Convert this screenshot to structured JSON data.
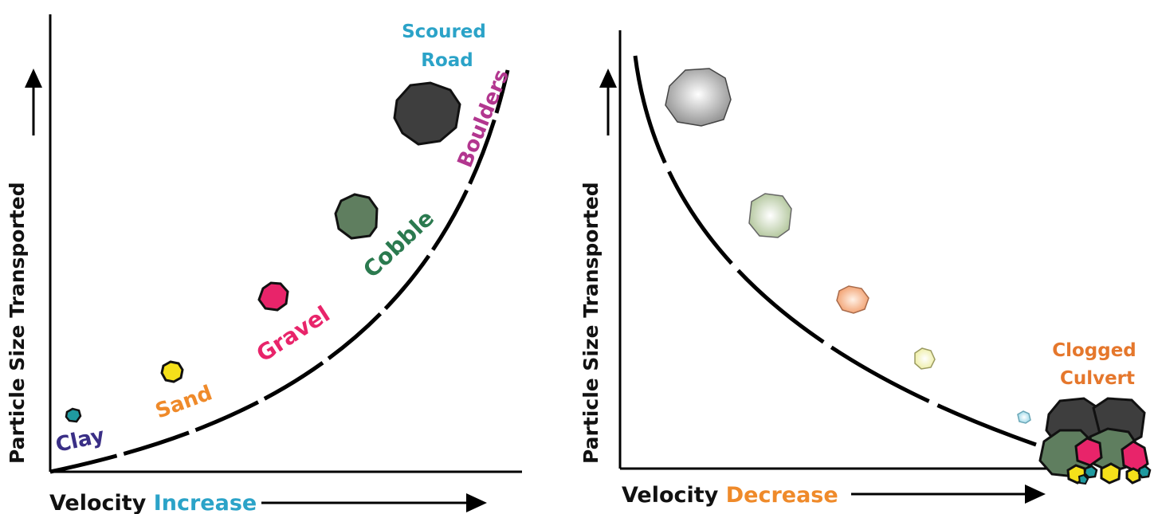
{
  "left_panel": {
    "y_axis_label": "Particle Size Transported",
    "x_axis_label_prefix": "Velocity",
    "x_axis_label_emphasis": "Increase",
    "annotation_line1": "Scoured",
    "annotation_line2": "Road",
    "particles": [
      {
        "label": "Clay",
        "color": "#1f9aa0",
        "label_color": "#3a2f86"
      },
      {
        "label": "Sand",
        "color": "#f5e01a",
        "label_color": "#ef8a2a"
      },
      {
        "label": "Gravel",
        "color": "#e8246a",
        "label_color": "#e8246a"
      },
      {
        "label": "Cobble",
        "color": "#5f7e5f",
        "label_color": "#2b7a4f"
      },
      {
        "label": "Boulders",
        "color": "#3e3e3e",
        "label_color": "#b2368f"
      }
    ]
  },
  "right_panel": {
    "y_axis_label": "Particle Size Transported",
    "x_axis_label_prefix": "Velocity",
    "x_axis_label_emphasis": "Decrease",
    "annotation_line1": "Clogged",
    "annotation_line2": "Culvert"
  },
  "colors": {
    "increase": "#2ba3c8",
    "decrease": "#ef8a2a",
    "scoured_road": "#2ba3c8",
    "clogged_culvert": "#e5772c"
  }
}
